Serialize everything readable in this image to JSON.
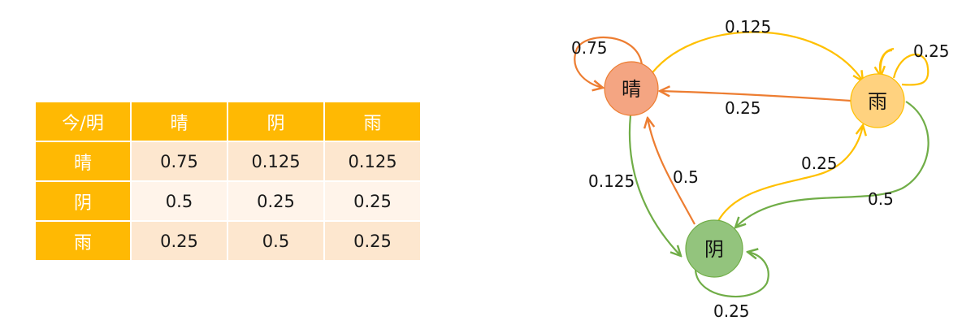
{
  "table": {
    "corner": "今/明",
    "columns": [
      "晴",
      "阴",
      "雨"
    ],
    "rows": [
      {
        "label": "晴",
        "values": [
          "0.75",
          "0.125",
          "0.125"
        ]
      },
      {
        "label": "阴",
        "values": [
          "0.5",
          "0.25",
          "0.25"
        ]
      },
      {
        "label": "雨",
        "values": [
          "0.25",
          "0.5",
          "0.25"
        ]
      }
    ]
  },
  "diagram": {
    "nodes": {
      "sunny": "晴",
      "rainy": "雨",
      "cloudy": "阴"
    },
    "edges": {
      "sunny_sunny": "0.75",
      "sunny_rainy": "0.125",
      "rainy_sunny": "0.25",
      "rainy_rainy": "0.25",
      "sunny_cloudy": "0.125",
      "cloudy_sunny": "0.5",
      "cloudy_rainy": "0.25",
      "rainy_cloudy": "0.5",
      "cloudy_cloudy": "0.25"
    },
    "colors": {
      "sunny": "#f4a582",
      "rainy": "#ffd27f",
      "cloudy": "#93c47d",
      "orange_edge": "#ed7d31",
      "yellow_edge": "#ffc000",
      "green_edge": "#70ad47"
    }
  }
}
